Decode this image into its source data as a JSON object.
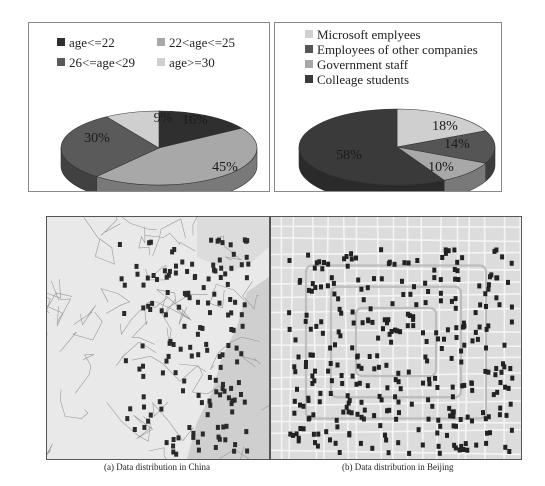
{
  "chart_data": [
    {
      "type": "pie",
      "title": "",
      "legend_position": "top",
      "slices": [
        {
          "label": "age<=22",
          "value": 16,
          "color": "#2f2f2f"
        },
        {
          "label": "22<age<=25",
          "value": 45,
          "color": "#a8a8a8"
        },
        {
          "label": "26<=age<29",
          "value": 30,
          "color": "#5a5a5a"
        },
        {
          "label": "age>=30",
          "value": 9,
          "color": "#cfcfcf"
        }
      ],
      "data_labels": [
        "16%",
        "45%",
        "30%",
        "9%"
      ]
    },
    {
      "type": "pie",
      "title": "",
      "legend_position": "top",
      "slices": [
        {
          "label": "Microsoft emplyees",
          "value": 18,
          "color": "#cfcfcf"
        },
        {
          "label": "Employees of other companies",
          "value": 14,
          "color": "#555555"
        },
        {
          "label": "Government staff",
          "value": 10,
          "color": "#a8a8a8"
        },
        {
          "label": "Colleage students",
          "value": 58,
          "color": "#3a3a3a"
        }
      ],
      "data_labels": [
        "18%",
        "14%",
        "10%",
        "58%"
      ]
    }
  ],
  "maps": {
    "china_caption": "(a) Data distribution in China",
    "beijing_caption": "(b) Data distribution in Beijing"
  }
}
